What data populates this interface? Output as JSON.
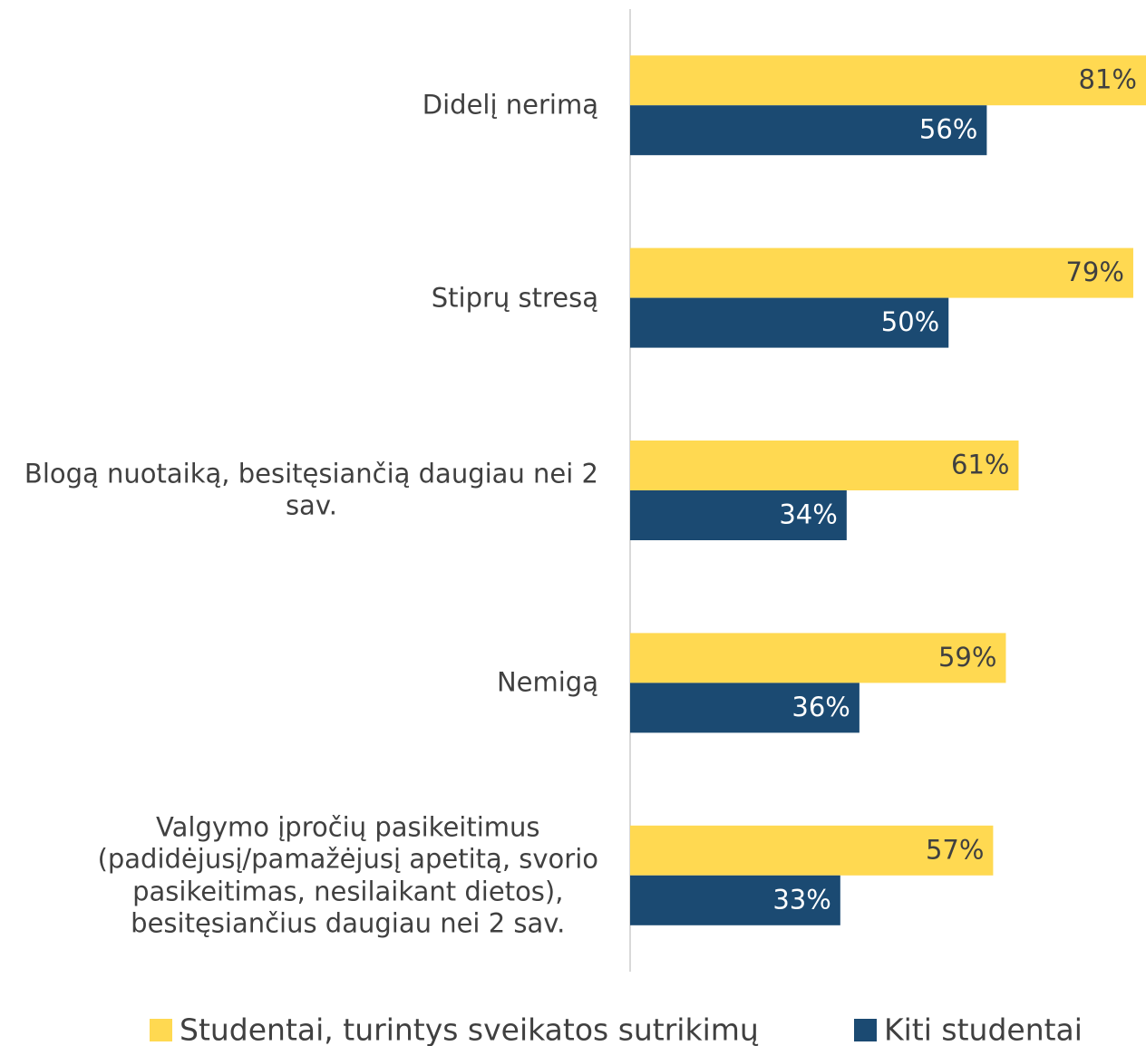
{
  "chart_data": {
    "type": "barh",
    "categories": [
      "Didelį nerimą",
      "Stiprų stresą",
      "Blogą nuotaiką, besitęsiančią daugiau nei 2\nsav.",
      "Nemigą",
      "Valgymo įpročių pasikeitimus\n(padidėjusį/pamažėjusį apetitą, svorio\npasikeitimas, nesilaikant dietos),\nbesitęsiančius daugiau nei 2 sav."
    ],
    "series": [
      {
        "name": "Studentai, turintys sveikatos sutrikimų",
        "color": "#FFD951",
        "label_color": "#404040",
        "values": [
          81,
          79,
          61,
          59,
          57
        ],
        "value_labels": [
          "81%",
          "79%",
          "61%",
          "59%",
          "57%"
        ]
      },
      {
        "name": "Kiti studentai",
        "color": "#1B4A72",
        "label_color": "#ffffff",
        "values": [
          56,
          50,
          34,
          36,
          33
        ],
        "value_labels": [
          "56%",
          "50%",
          "34%",
          "36%",
          "33%"
        ]
      }
    ],
    "xlim": [
      0,
      81
    ],
    "legend": "bottom"
  }
}
